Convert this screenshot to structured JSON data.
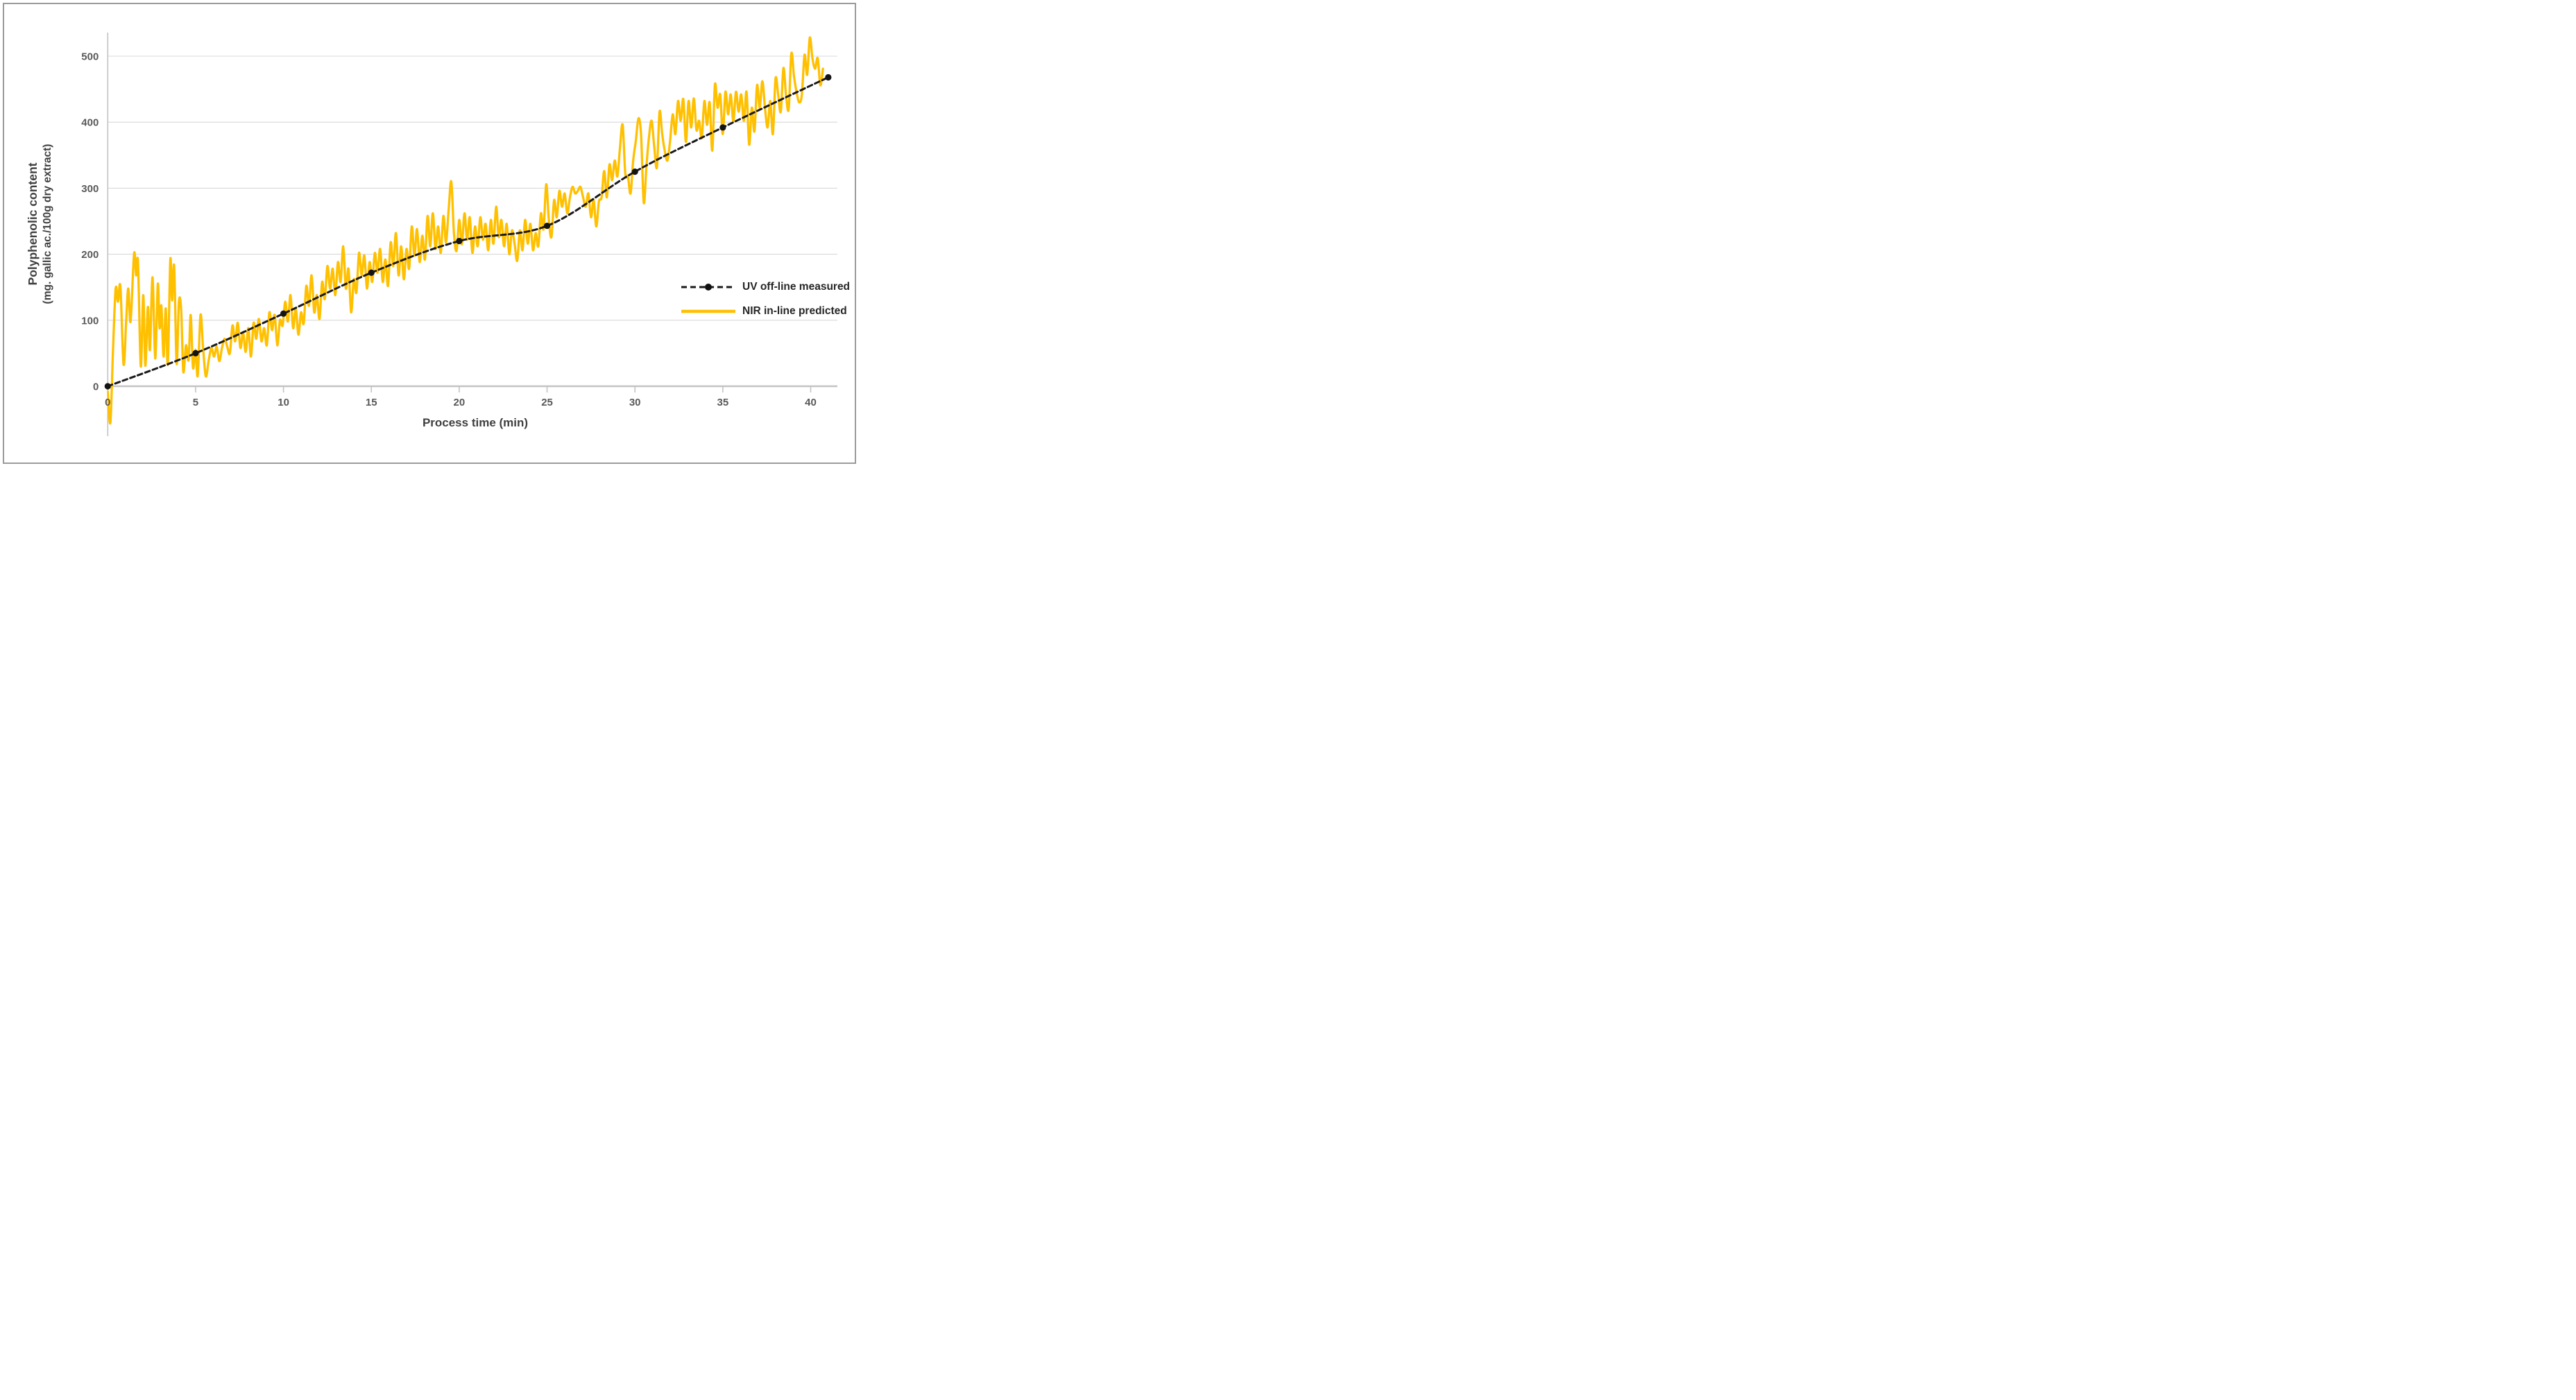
{
  "chart_data": {
    "type": "line",
    "title": "",
    "xlabel": "Process time (min)",
    "ylabel_line1": "Polyphenolic content",
    "ylabel_line2": "(mg. gallic ac./100g dry extract)",
    "xlim": [
      0,
      41.5
    ],
    "ylim": [
      -75,
      536
    ],
    "x_ticks": [
      0,
      5,
      10,
      15,
      20,
      25,
      30,
      35,
      40
    ],
    "y_ticks": [
      0,
      100,
      200,
      300,
      400,
      500
    ],
    "grid": "horizontal-only",
    "legend_position": "inside-right-middle",
    "series": [
      {
        "name": "UV off-line measured",
        "color": "#1a1a1a",
        "style": "dashed-with-round-markers",
        "points": [
          [
            0,
            0
          ],
          [
            5,
            50
          ],
          [
            10,
            110
          ],
          [
            15,
            172
          ],
          [
            20,
            220
          ],
          [
            25,
            243
          ],
          [
            30,
            325
          ],
          [
            35,
            392
          ],
          [
            41,
            468
          ]
        ]
      },
      {
        "name": "NIR in-line predicted",
        "color": "#FFC000",
        "style": "solid-smooth",
        "points": [
          [
            0,
            -8
          ],
          [
            0.15,
            -55
          ],
          [
            0.3,
            55
          ],
          [
            0.45,
            148
          ],
          [
            0.58,
            128
          ],
          [
            0.72,
            151
          ],
          [
            0.9,
            33
          ],
          [
            1.05,
            100
          ],
          [
            1.17,
            148
          ],
          [
            1.3,
            98
          ],
          [
            1.5,
            201
          ],
          [
            1.62,
            168
          ],
          [
            1.72,
            188
          ],
          [
            1.88,
            30
          ],
          [
            2.02,
            138
          ],
          [
            2.14,
            31
          ],
          [
            2.28,
            120
          ],
          [
            2.4,
            55
          ],
          [
            2.55,
            165
          ],
          [
            2.7,
            42
          ],
          [
            2.85,
            155
          ],
          [
            2.95,
            88
          ],
          [
            3.05,
            122
          ],
          [
            3.18,
            45
          ],
          [
            3.3,
            118
          ],
          [
            3.42,
            33
          ],
          [
            3.56,
            192
          ],
          [
            3.66,
            130
          ],
          [
            3.78,
            182
          ],
          [
            3.92,
            34
          ],
          [
            4.05,
            128
          ],
          [
            4.18,
            115
          ],
          [
            4.3,
            22
          ],
          [
            4.45,
            62
          ],
          [
            4.6,
            40
          ],
          [
            4.72,
            108
          ],
          [
            4.85,
            28
          ],
          [
            5.0,
            55
          ],
          [
            5.12,
            16
          ],
          [
            5.28,
            108
          ],
          [
            5.42,
            60
          ],
          [
            5.58,
            15
          ],
          [
            5.75,
            40
          ],
          [
            5.9,
            58
          ],
          [
            6.05,
            45
          ],
          [
            6.2,
            60
          ],
          [
            6.35,
            38
          ],
          [
            6.5,
            58
          ],
          [
            6.65,
            72
          ],
          [
            6.8,
            60
          ],
          [
            6.95,
            50
          ],
          [
            7.1,
            92
          ],
          [
            7.25,
            68
          ],
          [
            7.4,
            96
          ],
          [
            7.55,
            58
          ],
          [
            7.7,
            82
          ],
          [
            7.85,
            52
          ],
          [
            8.0,
            88
          ],
          [
            8.15,
            45
          ],
          [
            8.3,
            96
          ],
          [
            8.45,
            72
          ],
          [
            8.6,
            102
          ],
          [
            8.75,
            68
          ],
          [
            8.9,
            88
          ],
          [
            9.05,
            62
          ],
          [
            9.2,
            112
          ],
          [
            9.35,
            85
          ],
          [
            9.5,
            108
          ],
          [
            9.65,
            62
          ],
          [
            9.8,
            100
          ],
          [
            9.95,
            92
          ],
          [
            10.1,
            128
          ],
          [
            10.25,
            98
          ],
          [
            10.4,
            138
          ],
          [
            10.55,
            88
          ],
          [
            10.7,
            118
          ],
          [
            10.85,
            78
          ],
          [
            11.0,
            112
          ],
          [
            11.15,
            95
          ],
          [
            11.3,
            152
          ],
          [
            11.45,
            122
          ],
          [
            11.6,
            168
          ],
          [
            11.75,
            112
          ],
          [
            11.9,
            138
          ],
          [
            12.05,
            102
          ],
          [
            12.2,
            158
          ],
          [
            12.35,
            132
          ],
          [
            12.5,
            182
          ],
          [
            12.65,
            148
          ],
          [
            12.8,
            178
          ],
          [
            12.95,
            138
          ],
          [
            13.1,
            188
          ],
          [
            13.25,
            158
          ],
          [
            13.4,
            212
          ],
          [
            13.55,
            148
          ],
          [
            13.7,
            178
          ],
          [
            13.85,
            112
          ],
          [
            14.0,
            162
          ],
          [
            14.15,
            142
          ],
          [
            14.3,
            202
          ],
          [
            14.45,
            168
          ],
          [
            14.6,
            198
          ],
          [
            14.75,
            148
          ],
          [
            14.9,
            188
          ],
          [
            15.05,
            158
          ],
          [
            15.2,
            202
          ],
          [
            15.35,
            172
          ],
          [
            15.5,
            208
          ],
          [
            15.65,
            158
          ],
          [
            15.8,
            192
          ],
          [
            15.95,
            152
          ],
          [
            16.1,
            218
          ],
          [
            16.25,
            182
          ],
          [
            16.4,
            232
          ],
          [
            16.55,
            168
          ],
          [
            16.7,
            212
          ],
          [
            16.85,
            162
          ],
          [
            17.0,
            208
          ],
          [
            17.15,
            178
          ],
          [
            17.3,
            242
          ],
          [
            17.45,
            198
          ],
          [
            17.6,
            238
          ],
          [
            17.75,
            188
          ],
          [
            17.9,
            228
          ],
          [
            18.05,
            192
          ],
          [
            18.2,
            258
          ],
          [
            18.35,
            212
          ],
          [
            18.5,
            262
          ],
          [
            18.65,
            208
          ],
          [
            18.8,
            242
          ],
          [
            18.95,
            202
          ],
          [
            19.1,
            258
          ],
          [
            19.25,
            218
          ],
          [
            19.4,
            268
          ],
          [
            19.55,
            310
          ],
          [
            19.7,
            232
          ],
          [
            19.85,
            205
          ],
          [
            20.0,
            252
          ],
          [
            20.15,
            215
          ],
          [
            20.3,
            262
          ],
          [
            20.45,
            222
          ],
          [
            20.6,
            256
          ],
          [
            20.75,
            202
          ],
          [
            20.9,
            242
          ],
          [
            21.05,
            212
          ],
          [
            21.2,
            256
          ],
          [
            21.35,
            222
          ],
          [
            21.5,
            246
          ],
          [
            21.65,
            206
          ],
          [
            21.8,
            252
          ],
          [
            21.95,
            216
          ],
          [
            22.1,
            272
          ],
          [
            22.25,
            226
          ],
          [
            22.4,
            252
          ],
          [
            22.55,
            212
          ],
          [
            22.7,
            246
          ],
          [
            22.85,
            200
          ],
          [
            23.0,
            236
          ],
          [
            23.15,
            216
          ],
          [
            23.3,
            190
          ],
          [
            23.45,
            236
          ],
          [
            23.6,
            206
          ],
          [
            23.75,
            252
          ],
          [
            23.9,
            216
          ],
          [
            24.05,
            246
          ],
          [
            24.2,
            206
          ],
          [
            24.35,
            232
          ],
          [
            24.5,
            212
          ],
          [
            24.65,
            262
          ],
          [
            24.8,
            238
          ],
          [
            24.95,
            306
          ],
          [
            25.1,
            252
          ],
          [
            25.25,
            226
          ],
          [
            25.4,
            282
          ],
          [
            25.55,
            256
          ],
          [
            25.7,
            296
          ],
          [
            25.85,
            272
          ],
          [
            26.0,
            292
          ],
          [
            26.15,
            262
          ],
          [
            26.3,
            286
          ],
          [
            26.45,
            302
          ],
          [
            26.6,
            292
          ],
          [
            26.75,
            296
          ],
          [
            26.9,
            302
          ],
          [
            27.05,
            286
          ],
          [
            27.2,
            272
          ],
          [
            27.35,
            292
          ],
          [
            27.5,
            256
          ],
          [
            27.65,
            282
          ],
          [
            27.8,
            242
          ],
          [
            27.95,
            280
          ],
          [
            28.1,
            286
          ],
          [
            28.25,
            326
          ],
          [
            28.4,
            286
          ],
          [
            28.55,
            336
          ],
          [
            28.7,
            312
          ],
          [
            28.85,
            342
          ],
          [
            29.0,
            318
          ],
          [
            29.15,
            362
          ],
          [
            29.3,
            396
          ],
          [
            29.45,
            322
          ],
          [
            29.6,
            318
          ],
          [
            29.75,
            292
          ],
          [
            29.9,
            342
          ],
          [
            30.05,
            372
          ],
          [
            30.2,
            406
          ],
          [
            30.35,
            380
          ],
          [
            30.5,
            278
          ],
          [
            30.65,
            332
          ],
          [
            30.8,
            378
          ],
          [
            30.95,
            402
          ],
          [
            31.1,
            362
          ],
          [
            31.25,
            332
          ],
          [
            31.4,
            416
          ],
          [
            31.55,
            382
          ],
          [
            31.7,
            356
          ],
          [
            31.85,
            342
          ],
          [
            32.0,
            372
          ],
          [
            32.15,
            412
          ],
          [
            32.3,
            382
          ],
          [
            32.45,
            432
          ],
          [
            32.6,
            402
          ],
          [
            32.75,
            435
          ],
          [
            32.9,
            370
          ],
          [
            33.05,
            432
          ],
          [
            33.2,
            392
          ],
          [
            33.35,
            436
          ],
          [
            33.5,
            388
          ],
          [
            33.65,
            402
          ],
          [
            33.8,
            376
          ],
          [
            33.95,
            432
          ],
          [
            34.1,
            396
          ],
          [
            34.25,
            430
          ],
          [
            34.4,
            357
          ],
          [
            34.55,
            457
          ],
          [
            34.7,
            422
          ],
          [
            34.85,
            442
          ],
          [
            35.0,
            382
          ],
          [
            35.15,
            446
          ],
          [
            35.3,
            412
          ],
          [
            35.45,
            442
          ],
          [
            35.6,
            402
          ],
          [
            35.75,
            446
          ],
          [
            35.9,
            416
          ],
          [
            36.05,
            442
          ],
          [
            36.2,
            402
          ],
          [
            36.35,
            446
          ],
          [
            36.5,
            366
          ],
          [
            36.65,
            422
          ],
          [
            36.8,
            386
          ],
          [
            36.95,
            456
          ],
          [
            37.1,
            422
          ],
          [
            37.25,
            462
          ],
          [
            37.4,
            422
          ],
          [
            37.55,
            392
          ],
          [
            37.7,
            432
          ],
          [
            37.85,
            382
          ],
          [
            38.0,
            466
          ],
          [
            38.15,
            442
          ],
          [
            38.3,
            416
          ],
          [
            38.45,
            482
          ],
          [
            38.6,
            440
          ],
          [
            38.75,
            420
          ],
          [
            38.9,
            504
          ],
          [
            39.05,
            470
          ],
          [
            39.2,
            445
          ],
          [
            39.35,
            430
          ],
          [
            39.5,
            442
          ],
          [
            39.65,
            502
          ],
          [
            39.8,
            472
          ],
          [
            39.95,
            528
          ],
          [
            40.1,
            497
          ],
          [
            40.25,
            481
          ],
          [
            40.4,
            497
          ],
          [
            40.55,
            456
          ],
          [
            40.7,
            481
          ]
        ]
      }
    ]
  },
  "colors": {
    "uv_series": "#1a1a1a",
    "nir_series": "#FFC000",
    "gridline": "#d9d9d9",
    "axis_line": "#c3c3c3",
    "tick_text": "#595959",
    "axis_title_text": "#3f3f3f",
    "legend_text": "#262626",
    "chart_border": "#9b9b9b",
    "background": "#ffffff"
  }
}
